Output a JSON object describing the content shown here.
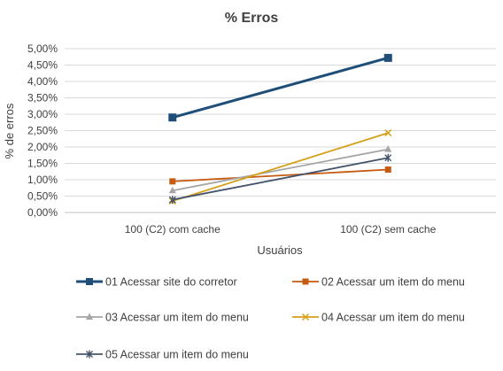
{
  "chart_data": {
    "type": "line",
    "title": "%  Erros",
    "xlabel": "Usuários",
    "ylabel": "% de erros",
    "categories": [
      "100 (C2) com cache",
      "100 (C2) sem cache"
    ],
    "ylim": [
      0,
      5
    ],
    "yticks": [
      "0,00%",
      "0,50%",
      "1,00%",
      "1,50%",
      "2,00%",
      "2,50%",
      "3,00%",
      "3,50%",
      "4,00%",
      "4,50%",
      "5,00%"
    ],
    "grid": true,
    "legend_position": "bottom",
    "series": [
      {
        "name": "01 Acessar site do corretor",
        "values": [
          2.9,
          4.72
        ],
        "color": "#1f4e79",
        "marker": "square",
        "width": 3
      },
      {
        "name": "02 Acessar um item do menu",
        "values": [
          0.95,
          1.31
        ],
        "color": "#c55a11",
        "marker": "square",
        "width": 1.8
      },
      {
        "name": "03 Acessar um item do menu",
        "values": [
          0.67,
          1.93
        ],
        "color": "#a5a5a5",
        "marker": "triangle",
        "width": 1.8
      },
      {
        "name": "04 Acessar um item do menu",
        "values": [
          0.35,
          2.43
        ],
        "color": "#d4a017",
        "marker": "x",
        "width": 1.8
      },
      {
        "name": "05 Acessar um item do menu",
        "values": [
          0.39,
          1.67
        ],
        "color": "#44546a",
        "marker": "star",
        "width": 1.8
      }
    ]
  }
}
